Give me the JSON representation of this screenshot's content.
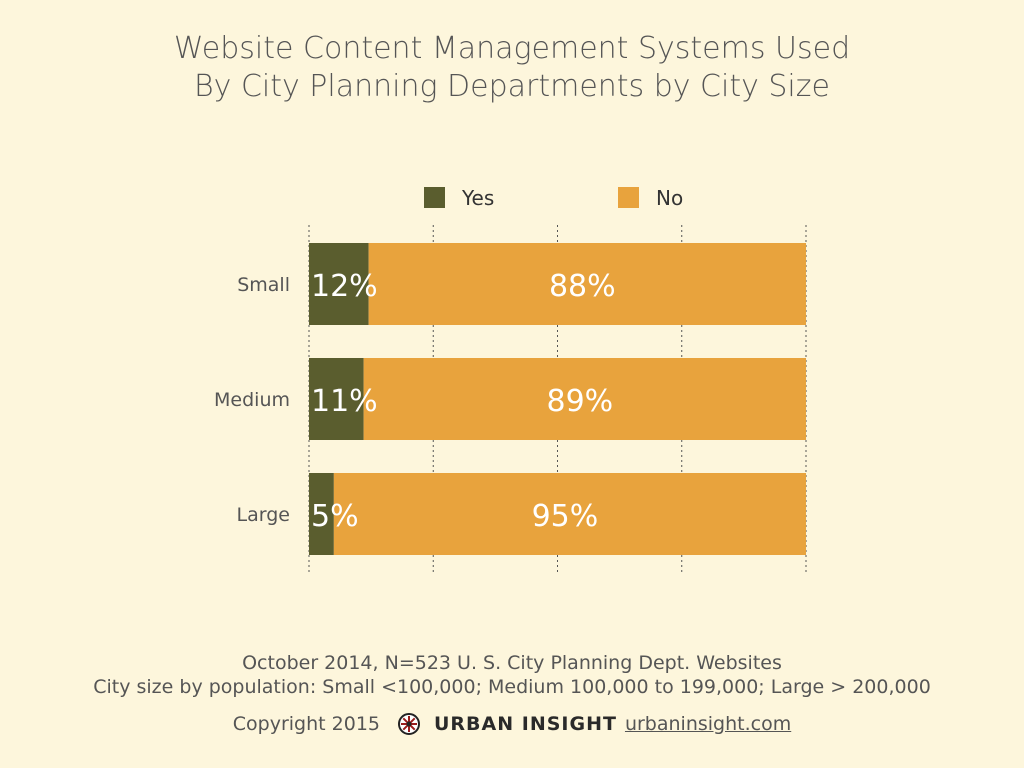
{
  "title_lines": [
    "Website Content Management Systems Used",
    "By City Planning Departments by City Size"
  ],
  "footer": {
    "line1": "October 2014, N=523 U. S. City Planning Dept. Websites",
    "line2": "City size by population:  Small <100,000; Medium 100,000 to 199,000; Large > 200,000",
    "copyright": "Copyright 2015",
    "brand": "URBAN INSIGHT",
    "link": "urbaninsight.com"
  },
  "colors": {
    "yes": "#5a5d2e",
    "no": "#e8a33d",
    "text": "#555555",
    "background": "#fdf6dc"
  },
  "chart_data": {
    "type": "bar",
    "orientation": "horizontal",
    "stacked": true,
    "categories": [
      "Small",
      "Medium",
      "Large"
    ],
    "series": [
      {
        "name": "Yes",
        "values": [
          12,
          11,
          5
        ],
        "labels": [
          "12%",
          "11%",
          "5%"
        ]
      },
      {
        "name": "No",
        "values": [
          88,
          89,
          95
        ],
        "labels": [
          "88%",
          "89%",
          "95%"
        ]
      }
    ],
    "xlim": [
      0,
      100
    ],
    "grid": true,
    "legend": "top"
  }
}
